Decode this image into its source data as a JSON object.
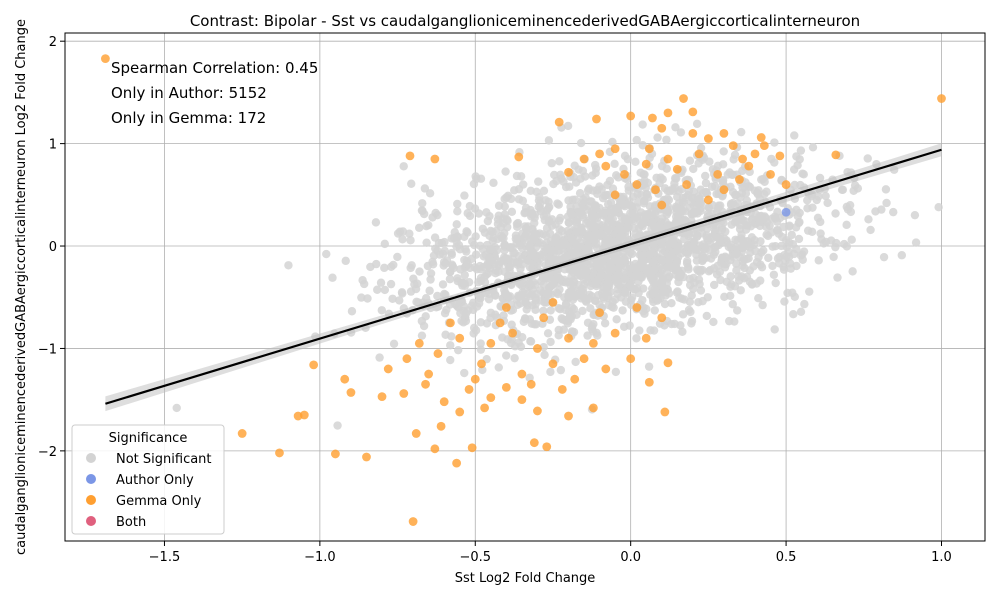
{
  "chart_data": {
    "type": "scatter",
    "title": "Contrast: Bipolar - Sst vs caudalganglioniceminencederivedGABAergiccorticalinterneuron",
    "xlabel": "Sst Log2 Fold Change",
    "ylabel": "caudalganglioniceminencederivedGABAergiccorticalinterneuron Log2 Fold Change",
    "xlim": [
      -1.82,
      1.14
    ],
    "ylim": [
      -2.88,
      2.08
    ],
    "xticks": [
      -1.5,
      -1.0,
      -0.5,
      0.0,
      0.5,
      1.0
    ],
    "xtick_labels": [
      "−1.5",
      "−1.0",
      "−0.5",
      "0.0",
      "0.5",
      "1.0"
    ],
    "yticks": [
      -2,
      -1,
      0,
      1,
      2
    ],
    "ytick_labels": [
      "−2",
      "−1",
      "0",
      "1",
      "2"
    ],
    "grid": true,
    "annotations": [
      "Spearman Correlation: 0.45",
      "Only in Author: 5152",
      "Only in Gemma: 172"
    ],
    "legend": {
      "title": "Significance",
      "placement": "lower-left",
      "entries": [
        {
          "label": "Not Significant",
          "color": "#d3d3d3"
        },
        {
          "label": "Author Only",
          "color": "#7b96e6"
        },
        {
          "label": "Gemma Only",
          "color": "#ff9f30"
        },
        {
          "label": "Both",
          "color": "#e0607e"
        }
      ]
    },
    "regression_line": {
      "x": [
        -1.69,
        1.0
      ],
      "y": [
        -1.54,
        0.94
      ],
      "color": "#000000"
    },
    "series": [
      {
        "name": "Gemma Only",
        "color": "#ff9f30",
        "points": [
          [
            -1.69,
            1.83
          ],
          [
            1.0,
            1.44
          ],
          [
            0.17,
            1.44
          ],
          [
            -0.11,
            1.24
          ],
          [
            0.0,
            1.27
          ],
          [
            0.07,
            1.25
          ],
          [
            0.12,
            1.3
          ],
          [
            0.2,
            1.31
          ],
          [
            -0.23,
            1.21
          ],
          [
            0.3,
            1.1
          ],
          [
            0.33,
            0.98
          ],
          [
            0.42,
            1.06
          ],
          [
            0.43,
            0.98
          ],
          [
            0.36,
            0.85
          ],
          [
            0.66,
            0.89
          ],
          [
            0.5,
            0.6
          ],
          [
            0.48,
            0.88
          ],
          [
            -0.71,
            0.88
          ],
          [
            -0.63,
            0.85
          ],
          [
            -0.36,
            0.87
          ],
          [
            0.2,
            1.1
          ],
          [
            0.25,
            1.05
          ],
          [
            0.1,
            1.15
          ],
          [
            -0.05,
            0.95
          ],
          [
            0.05,
            0.8
          ],
          [
            0.15,
            0.75
          ],
          [
            -0.1,
            0.9
          ],
          [
            0.28,
            0.7
          ],
          [
            0.38,
            0.78
          ],
          [
            0.3,
            0.55
          ],
          [
            0.02,
            0.6
          ],
          [
            -0.02,
            0.7
          ],
          [
            0.08,
            0.55
          ],
          [
            0.18,
            0.6
          ],
          [
            0.35,
            0.65
          ],
          [
            0.12,
            0.85
          ],
          [
            0.22,
            0.9
          ],
          [
            -0.15,
            0.85
          ],
          [
            -0.2,
            0.72
          ],
          [
            0.45,
            0.7
          ],
          [
            0.1,
            0.4
          ],
          [
            -0.05,
            0.5
          ],
          [
            0.25,
            0.45
          ],
          [
            0.06,
            0.95
          ],
          [
            -0.08,
            0.78
          ],
          [
            0.4,
            0.9
          ],
          [
            -1.25,
            -1.83
          ],
          [
            -1.13,
            -2.02
          ],
          [
            -1.07,
            -1.66
          ],
          [
            -1.05,
            -1.65
          ],
          [
            -0.95,
            -2.03
          ],
          [
            -0.85,
            -2.06
          ],
          [
            -0.7,
            -2.69
          ],
          [
            -0.63,
            -1.98
          ],
          [
            -0.56,
            -2.12
          ],
          [
            -0.51,
            -1.97
          ],
          [
            -0.31,
            -1.92
          ],
          [
            -0.27,
            -1.96
          ],
          [
            -0.2,
            -1.66
          ],
          [
            0.11,
            -1.62
          ],
          [
            -0.12,
            -1.58
          ],
          [
            -0.3,
            -1.61
          ],
          [
            -0.47,
            -1.58
          ],
          [
            -0.69,
            -1.83
          ],
          [
            -0.61,
            -1.76
          ],
          [
            -0.8,
            -1.47
          ],
          [
            -1.02,
            -1.16
          ],
          [
            -0.92,
            -1.3
          ],
          [
            -0.9,
            -1.43
          ],
          [
            -0.73,
            -1.44
          ],
          [
            -0.6,
            -1.52
          ],
          [
            -0.55,
            -1.62
          ],
          [
            -0.45,
            -1.48
          ],
          [
            -0.4,
            -1.38
          ],
          [
            -0.35,
            -1.25
          ],
          [
            -0.25,
            -1.15
          ],
          [
            -0.18,
            -1.3
          ],
          [
            -0.08,
            -1.2
          ],
          [
            0.0,
            -1.1
          ],
          [
            0.06,
            -1.33
          ],
          [
            0.12,
            -1.14
          ],
          [
            -0.5,
            -1.3
          ],
          [
            -0.65,
            -1.25
          ],
          [
            -0.72,
            -1.1
          ],
          [
            -0.62,
            -1.05
          ],
          [
            -0.55,
            -0.9
          ],
          [
            -0.45,
            -0.95
          ],
          [
            -0.38,
            -0.85
          ],
          [
            -0.3,
            -1.0
          ],
          [
            -0.2,
            -0.9
          ],
          [
            -0.12,
            -0.95
          ],
          [
            -0.05,
            -0.85
          ],
          [
            0.05,
            -0.9
          ],
          [
            0.1,
            -0.7
          ],
          [
            -0.28,
            -0.7
          ],
          [
            -0.42,
            -0.75
          ],
          [
            -0.35,
            -1.5
          ],
          [
            -0.22,
            -1.4
          ],
          [
            -0.52,
            -1.4
          ],
          [
            -0.66,
            -1.35
          ],
          [
            -0.78,
            -1.2
          ],
          [
            -0.48,
            -1.15
          ],
          [
            -0.15,
            -1.1
          ],
          [
            -0.25,
            -0.55
          ],
          [
            -0.4,
            -0.6
          ],
          [
            0.02,
            -0.6
          ],
          [
            -0.1,
            -0.65
          ],
          [
            -0.58,
            -0.75
          ],
          [
            -0.68,
            -0.95
          ],
          [
            -0.32,
            -1.35
          ]
        ]
      },
      {
        "name": "Author Only",
        "color": "#7b96e6",
        "points": [
          [
            0.5,
            0.33
          ]
        ]
      }
    ]
  }
}
